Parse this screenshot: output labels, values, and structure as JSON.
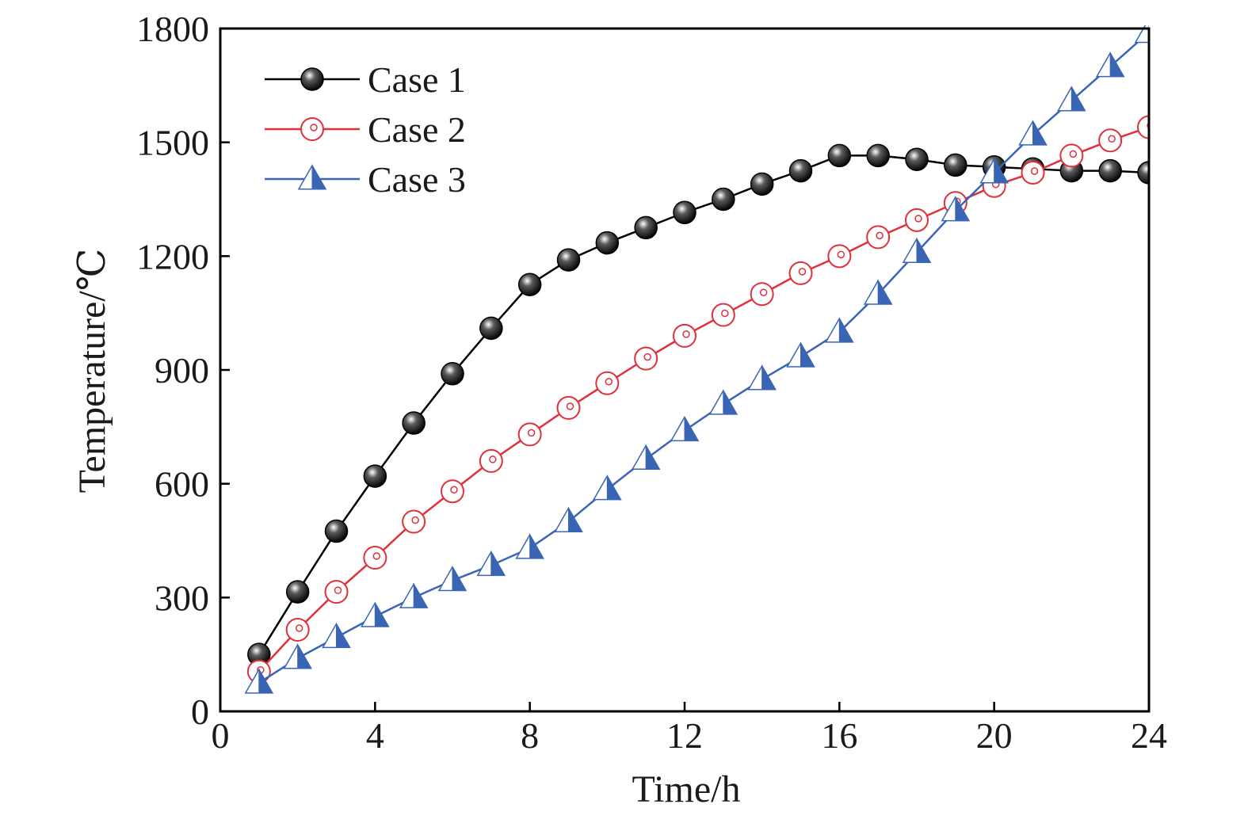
{
  "chart_data": {
    "type": "line",
    "title": "",
    "xlabel": "Time/h",
    "ylabel": "Temperature/℃",
    "xlim": [
      0,
      24
    ],
    "ylim": [
      0,
      1800
    ],
    "xticks": [
      0,
      4,
      8,
      12,
      16,
      20,
      24
    ],
    "yticks": [
      0,
      300,
      600,
      900,
      1200,
      1500,
      1800
    ],
    "xtick_labels": [
      "0",
      "4",
      "8",
      "12",
      "16",
      "20",
      "24"
    ],
    "ytick_labels": [
      "0",
      "300",
      "600",
      "900",
      "1200",
      "1500",
      "1800"
    ],
    "grid": false,
    "legend": "top-left",
    "x": [
      1,
      2,
      3,
      4,
      5,
      6,
      7,
      8,
      9,
      10,
      11,
      12,
      13,
      14,
      15,
      16,
      17,
      18,
      19,
      20,
      21,
      22,
      23,
      24
    ],
    "series": [
      {
        "name": "Case 1",
        "color": "#000000",
        "marker": "filled-circle",
        "values": [
          150,
          315,
          475,
          620,
          760,
          890,
          1010,
          1125,
          1190,
          1235,
          1275,
          1315,
          1350,
          1390,
          1425,
          1465,
          1465,
          1455,
          1440,
          1435,
          1430,
          1425,
          1425,
          1420
        ]
      },
      {
        "name": "Case 2",
        "color": "#e0303a",
        "marker": "open-circle",
        "values": [
          105,
          215,
          315,
          405,
          500,
          580,
          660,
          730,
          800,
          865,
          930,
          990,
          1045,
          1100,
          1155,
          1200,
          1250,
          1295,
          1340,
          1385,
          1420,
          1465,
          1505,
          1540
        ]
      },
      {
        "name": "Case 3",
        "color": "#3a64b4",
        "marker": "triangle",
        "values": [
          75,
          140,
          195,
          250,
          300,
          345,
          385,
          430,
          500,
          585,
          665,
          740,
          810,
          875,
          935,
          1000,
          1100,
          1210,
          1320,
          1420,
          1520,
          1610,
          1700,
          1790
        ]
      }
    ]
  }
}
